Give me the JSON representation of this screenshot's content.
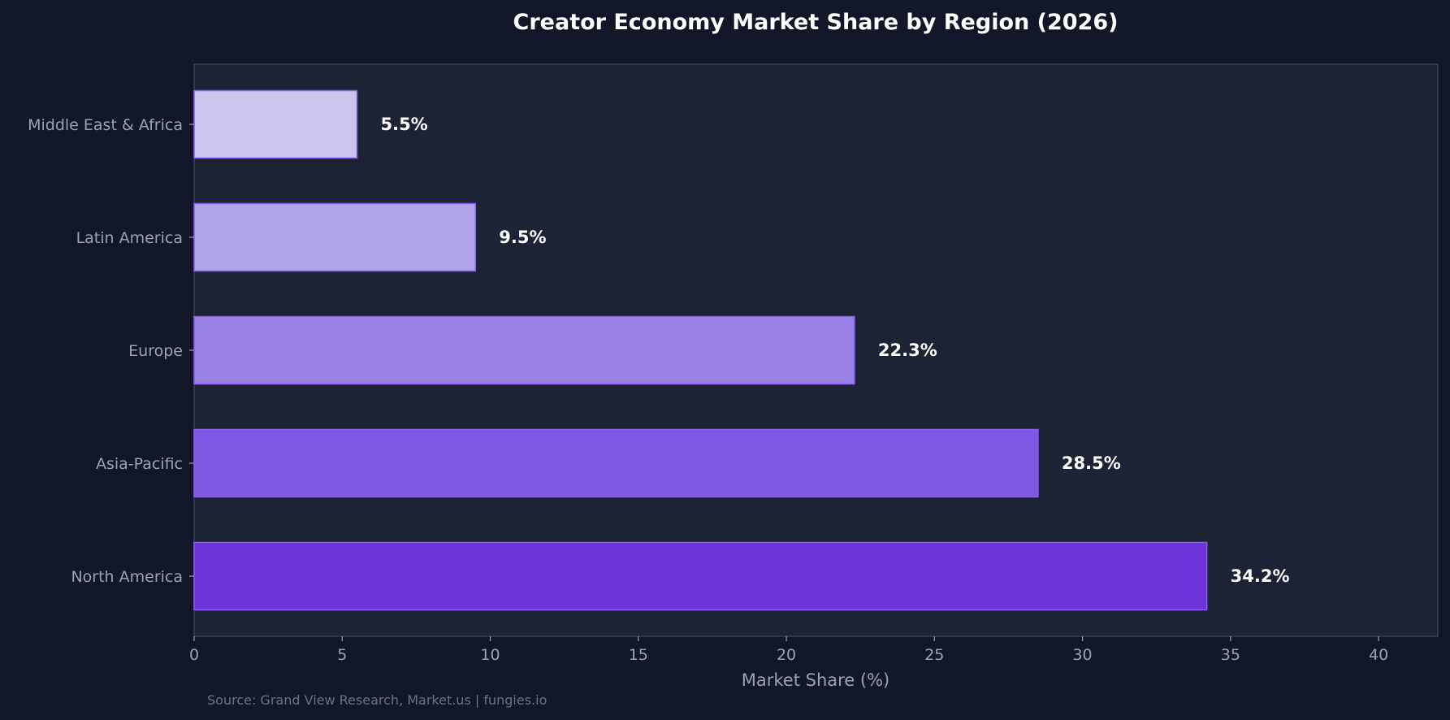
{
  "chart_data": {
    "type": "bar",
    "orientation": "horizontal",
    "title": "Creator Economy Market Share by Region (2026)",
    "xlabel": "Market Share (%)",
    "ylabel": "",
    "categories": [
      "North America",
      "Asia-Pacific",
      "Europe",
      "Latin America",
      "Middle East & Africa"
    ],
    "values": [
      34.2,
      28.5,
      22.3,
      9.5,
      5.5
    ],
    "value_labels": [
      "34.2%",
      "28.5%",
      "22.3%",
      "9.5%",
      "5.5%"
    ],
    "bar_colors": [
      "#6d33d9",
      "#7e57e2",
      "#9a81e6",
      "#b1a4eb",
      "#cac5ec"
    ],
    "bar_edge_color": "#8b5cf6",
    "xlim": [
      0,
      42
    ],
    "xticks": [
      0,
      5,
      10,
      15,
      20,
      25,
      30,
      35,
      40
    ],
    "grid": false,
    "legend": false,
    "source": "Source: Grand View Research, Market.us | fungies.io",
    "colors": {
      "background": "#111729",
      "plot_background": "#1b2335",
      "axis": "#3f4a5c",
      "text_muted": "#9ca3af",
      "text_primary": "#ffffff"
    }
  }
}
